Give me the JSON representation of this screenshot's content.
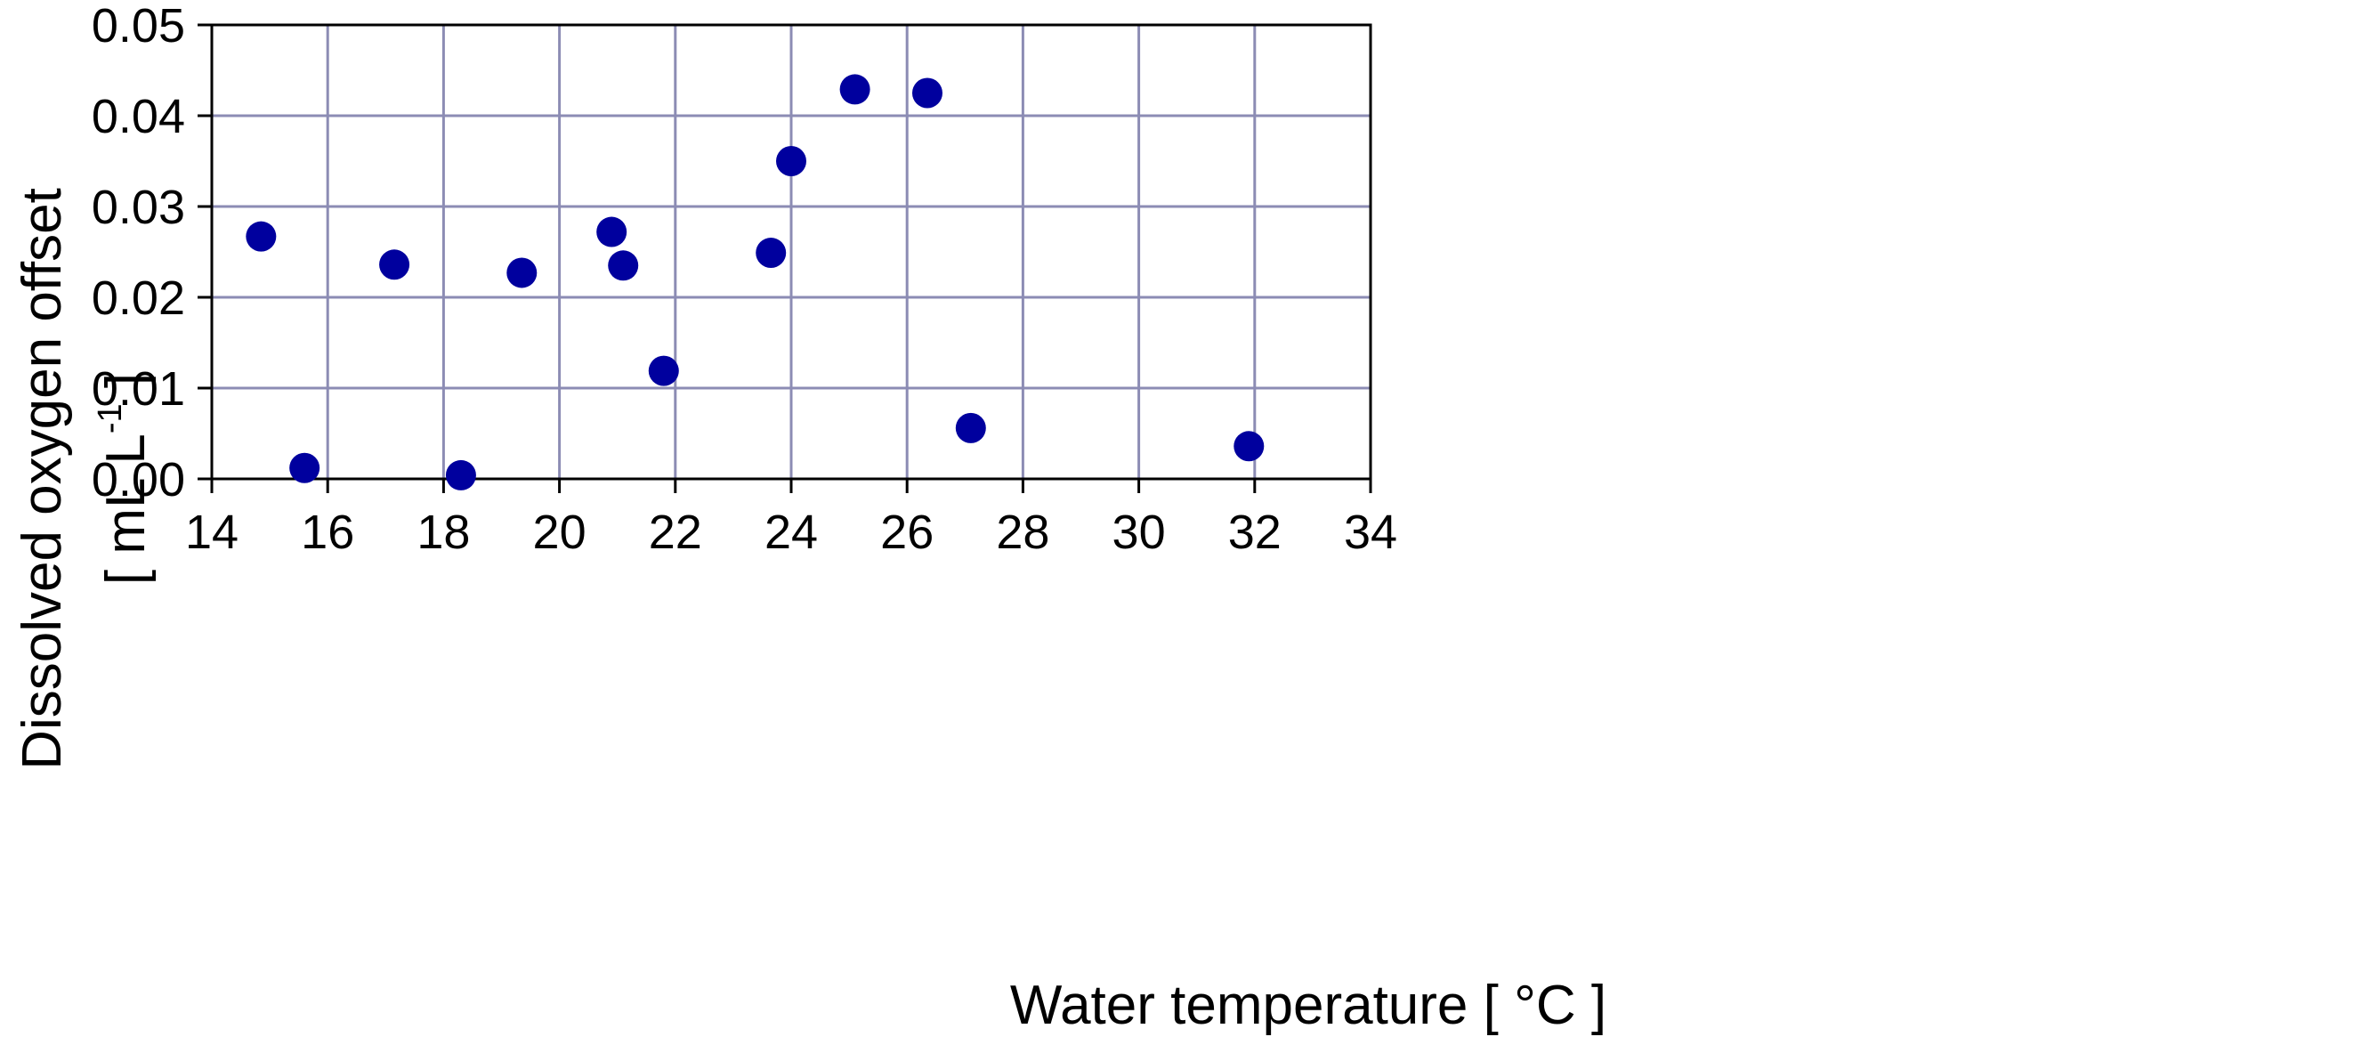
{
  "chart_data": {
    "type": "scatter",
    "xlabel": "Water temperature [ °C ]",
    "ylabel_line1": "Dissolved oxygen offset",
    "ylabel_line2_prefix": "[ mL L",
    "ylabel_line2_sup": "-1",
    "ylabel_line2_suffix": " ]",
    "xlim": [
      14,
      34
    ],
    "ylim": [
      0,
      0.05
    ],
    "x_ticks": [
      "14",
      "16",
      "18",
      "20",
      "22",
      "24",
      "26",
      "28",
      "30",
      "32",
      "34"
    ],
    "y_ticks": [
      "0.00",
      "0.01",
      "0.02",
      "0.03",
      "0.04",
      "0.05"
    ],
    "x_tick_values": [
      14,
      16,
      18,
      20,
      22,
      24,
      26,
      28,
      30,
      32,
      34
    ],
    "y_tick_values": [
      0,
      0.01,
      0.02,
      0.03,
      0.04,
      0.05
    ],
    "grid": true,
    "marker_color": "#00009e",
    "grid_color": "#8c8cb4",
    "series": [
      {
        "points": [
          {
            "x": 14.85,
            "y": 0.0267
          },
          {
            "x": 15.6,
            "y": 0.0012
          },
          {
            "x": 17.15,
            "y": 0.0236
          },
          {
            "x": 18.3,
            "y": 0.0004
          },
          {
            "x": 19.35,
            "y": 0.0227
          },
          {
            "x": 20.9,
            "y": 0.0272
          },
          {
            "x": 21.1,
            "y": 0.0235
          },
          {
            "x": 21.8,
            "y": 0.0119
          },
          {
            "x": 23.65,
            "y": 0.0249
          },
          {
            "x": 24.0,
            "y": 0.035
          },
          {
            "x": 25.1,
            "y": 0.0429
          },
          {
            "x": 26.35,
            "y": 0.0425
          },
          {
            "x": 27.1,
            "y": 0.0056
          },
          {
            "x": 31.9,
            "y": 0.0036
          }
        ]
      }
    ]
  }
}
